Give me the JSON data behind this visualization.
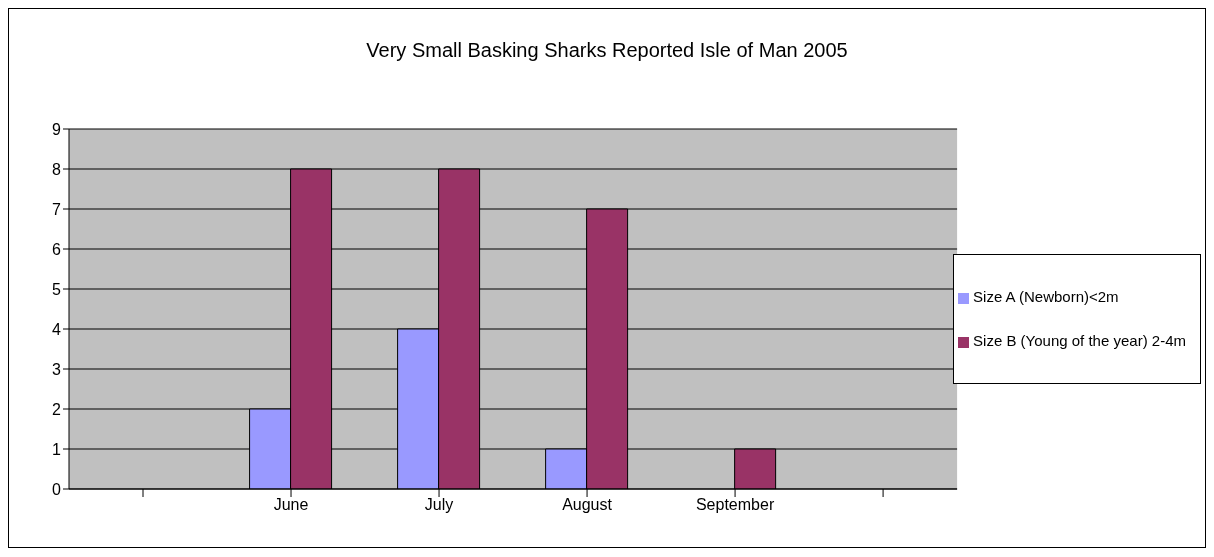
{
  "chart_data": {
    "type": "bar",
    "title": "Very Small Basking Sharks Reported Isle of Man 2005",
    "categories": [
      null,
      "June",
      "July",
      "August",
      "September",
      null
    ],
    "series": [
      {
        "name": "Size A (Newborn)<2m",
        "color": "#9999ff",
        "values": [
          null,
          2,
          4,
          1,
          null,
          null
        ]
      },
      {
        "name": "Size B (Young of the year) 2-4m",
        "color": "#993366",
        "values": [
          null,
          8,
          8,
          7,
          1,
          null
        ]
      }
    ],
    "ylim": [
      0,
      9
    ],
    "yticks": [
      0,
      1,
      2,
      3,
      4,
      5,
      6,
      7,
      8,
      9
    ],
    "grid": "y",
    "legend": "right"
  }
}
